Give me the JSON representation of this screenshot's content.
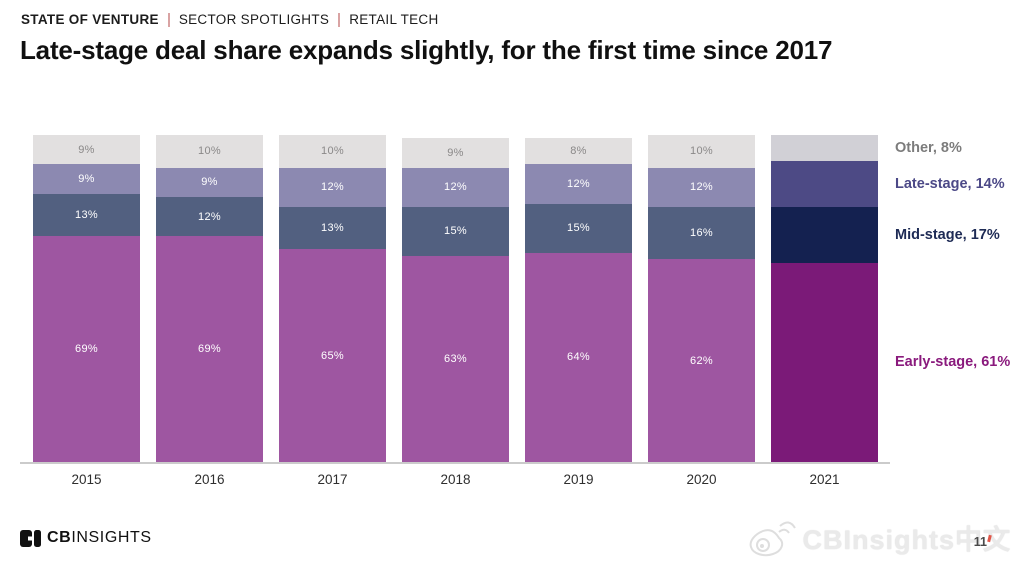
{
  "kicker": {
    "items": [
      "STATE OF VENTURE",
      "SECTOR SPOTLIGHTS",
      "RETAIL TECH"
    ],
    "separator_color": "#d9a3a3"
  },
  "title": "Late-stage deal share expands slightly, for the first time since 2017",
  "chart_data": {
    "type": "bar",
    "subtype": "stacked-100-percent",
    "title": "Late-stage deal share expands slightly, for the first time since 2017",
    "categories": [
      "2015",
      "2016",
      "2017",
      "2018",
      "2019",
      "2020",
      "2021"
    ],
    "series": [
      {
        "name": "Early-stage",
        "values": [
          69,
          69,
          65,
          63,
          64,
          62,
          61
        ],
        "color": "#9e56a1",
        "highlight_color": "#7b1a78",
        "label_color": "#ffffff"
      },
      {
        "name": "Mid-stage",
        "values": [
          13,
          12,
          13,
          15,
          15,
          16,
          17
        ],
        "color": "#526080",
        "highlight_color": "#142150",
        "label_color": "#ffffff"
      },
      {
        "name": "Late-stage",
        "values": [
          9,
          9,
          12,
          12,
          12,
          12,
          14
        ],
        "color": "#8c89b1",
        "highlight_color": "#4d4a85",
        "label_color": "#ffffff"
      },
      {
        "name": "Other",
        "values": [
          9,
          10,
          10,
          9,
          8,
          10,
          8
        ],
        "color": "#e2e0e0",
        "highlight_color": "#d1d0d6",
        "label_color": "#8a8888"
      }
    ],
    "highlight_index": 6,
    "value_suffix": "%",
    "ylim": [
      0,
      100
    ],
    "grid": false,
    "legend_position": "right",
    "legend": [
      {
        "label": "Other, 8%",
        "color": "#7c7c7c"
      },
      {
        "label": "Late-stage, 14%",
        "color": "#4c4987"
      },
      {
        "label": "Mid-stage, 17%",
        "color": "#1e2b55"
      },
      {
        "label": "Early-stage, 61%",
        "color": "#8a1a7d"
      }
    ]
  },
  "footer": {
    "logo_cb": "CB",
    "logo_insights": "INSIGHTS"
  },
  "watermark": {
    "text": "CBInsights中文",
    "page_number": "11"
  }
}
